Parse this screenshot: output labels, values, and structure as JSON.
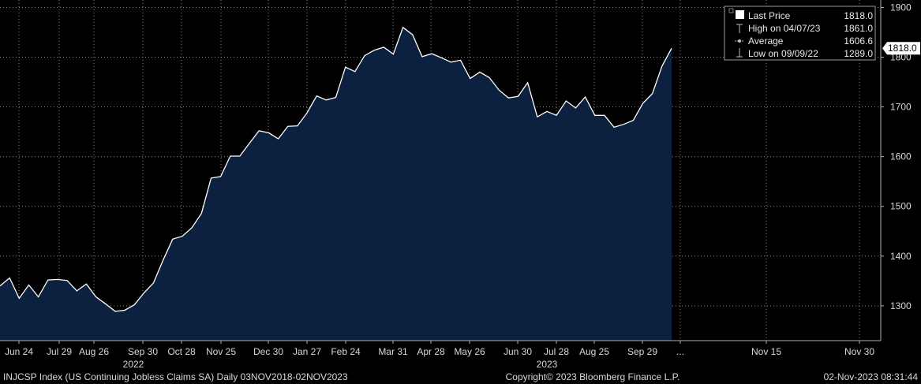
{
  "footer": {
    "left": "INJCSP Index (US Continuing Jobless Claims SA)  Daily 03NOV2018-02NOV2023",
    "center": "Copyright© 2023 Bloomberg Finance L.P.",
    "right": "02-Nov-2023 08:31:44"
  },
  "legend": {
    "items": [
      {
        "label": "Last Price",
        "value": "1818.0",
        "icon": "filled-square-icon"
      },
      {
        "label": "High on 04/07/23",
        "value": "1861.0",
        "icon": "high-marker-icon"
      },
      {
        "label": "Average",
        "value": "1606.6",
        "icon": "average-marker-icon"
      },
      {
        "label": "Low on 09/09/22",
        "value": "1289.0",
        "icon": "low-marker-icon"
      }
    ]
  },
  "colors": {
    "background": "#000000",
    "area_fill": "#0c2140",
    "line": "#ffffff",
    "grid": "#8a8a8a",
    "text": "#d8d8d8"
  },
  "chart_data": {
    "type": "area",
    "grid": true,
    "legend_position": "top-right",
    "y_axis_side": "right",
    "ylim": [
      1230,
      1915
    ],
    "yticks": [
      1300,
      1400,
      1500,
      1600,
      1700,
      1800,
      1900
    ],
    "x_tick_labels": [
      "Jun 24",
      "Jul 29",
      "Aug 26",
      "Sep 30",
      "Oct 28",
      "Nov 25",
      "Dec 30",
      "Jan 27",
      "Feb 24",
      "Mar 31",
      "Apr 28",
      "May 26",
      "Jun 30",
      "Jul 28",
      "Aug 25",
      "Sep 29",
      "...",
      "Nov 15",
      "Nov 30"
    ],
    "year_labels": [
      {
        "label": "2022",
        "at_tick": "Sep 30"
      },
      {
        "label": "2023",
        "at_tick": "Jul 28"
      }
    ],
    "last_value_label": "1818.0",
    "series": [
      {
        "values": [
          1340,
          1356,
          1315,
          1342,
          1318,
          1352,
          1353,
          1351,
          1330,
          1344,
          1318,
          1304,
          1289,
          1291,
          1302,
          1326,
          1346,
          1392,
          1434,
          1440,
          1457,
          1486,
          1557,
          1560,
          1601,
          1601,
          1627,
          1652,
          1648,
          1636,
          1661,
          1662,
          1688,
          1722,
          1714,
          1719,
          1780,
          1771,
          1803,
          1814,
          1820,
          1806,
          1860,
          1845,
          1801,
          1807,
          1799,
          1790,
          1794,
          1757,
          1770,
          1759,
          1734,
          1718,
          1721,
          1749,
          1680,
          1691,
          1683,
          1712,
          1698,
          1720,
          1683,
          1683,
          1659,
          1665,
          1673,
          1707,
          1727,
          1782,
          1818
        ]
      }
    ]
  }
}
